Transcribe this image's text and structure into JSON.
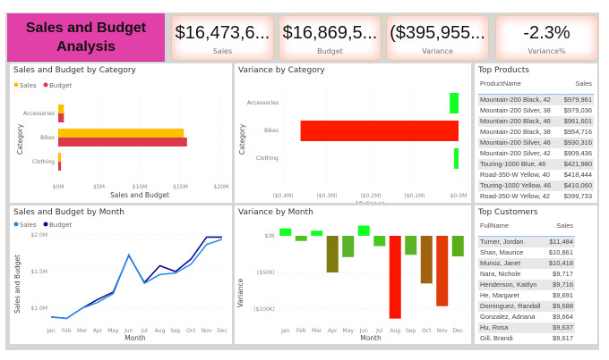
{
  "title": "Sales and Budget Analysis",
  "kpis": [
    {
      "value": "$16,473,6...",
      "label": "Sales"
    },
    {
      "value": "$16,869,5...",
      "label": "Budget"
    },
    {
      "value": "($395,955...",
      "label": "Variance"
    },
    {
      "value": "-2.3%",
      "label": "Variance%"
    }
  ],
  "colors": {
    "sales_bar": "#ffc000",
    "budget_bar": "#d9394a",
    "sales_line": "#2b8ce8",
    "budget_line": "#0a0a8c",
    "title_bg": "#e040a8"
  },
  "chart_data": [
    {
      "id": "cat",
      "type": "bar",
      "orientation": "horizontal",
      "title": "Sales and Budget by Category",
      "xlabel": "Sales and Budget",
      "ylabel": "Category",
      "categories": [
        "Accessories",
        "Bikes",
        "Clothing"
      ],
      "series": [
        {
          "name": "Sales",
          "values": [
            0.7,
            15.4,
            0.34
          ]
        },
        {
          "name": "Budget",
          "values": [
            0.7,
            15.8,
            0.34
          ]
        }
      ],
      "xlim": [
        0,
        20
      ],
      "ticks": [
        "$0M",
        "$5M",
        "$10M",
        "$15M",
        "$20M"
      ],
      "legend": "top-left"
    },
    {
      "id": "varcat",
      "type": "bar",
      "orientation": "horizontal",
      "title": "Variance by Category",
      "xlabel": "Variance",
      "ylabel": "Category",
      "categories": [
        "Accessories",
        "Bikes",
        "Clothing"
      ],
      "values": [
        -0.02,
        -0.36,
        -0.01
      ],
      "colors": [
        "#11ff22",
        "#ff1a00",
        "#11ff22"
      ],
      "xlim": [
        -0.4,
        0
      ],
      "ticks": [
        "($0.4M)",
        "($0.3M)",
        "($0.2M)",
        "($0.1M)",
        "$0.0M"
      ]
    },
    {
      "id": "month",
      "type": "line",
      "title": "Sales and Budget by Month",
      "xlabel": "Month",
      "ylabel": "Sales and Budget",
      "categories": [
        "Jan",
        "Feb",
        "Mar",
        "Apr",
        "May",
        "Jun",
        "Jul",
        "Aug",
        "Sep",
        "Oct",
        "Nov",
        "Dec"
      ],
      "series": [
        {
          "name": "Sales",
          "values": [
            0.88,
            0.86,
            1.0,
            1.08,
            1.2,
            1.73,
            1.34,
            1.46,
            1.48,
            1.6,
            1.87,
            1.94
          ]
        },
        {
          "name": "Budget",
          "values": [
            0.88,
            0.86,
            1.0,
            1.12,
            1.22,
            1.72,
            1.35,
            1.58,
            1.5,
            1.67,
            1.97,
            1.97
          ]
        }
      ],
      "ylim": [
        0.8,
        2.0
      ],
      "ticks": [
        {
          "v": 1.0,
          "t": "$1.0M"
        },
        {
          "v": 1.5,
          "t": "$1.5M"
        },
        {
          "v": 2.0,
          "t": "$2.0M"
        }
      ],
      "legend": "top-left"
    },
    {
      "id": "varmonth",
      "type": "bar",
      "title": "Variance by Month",
      "xlabel": "Month",
      "ylabel": "Variance",
      "categories": [
        "Jan",
        "Feb",
        "Mar",
        "Apr",
        "May",
        "Jun",
        "Jul",
        "Aug",
        "Sep",
        "Oct",
        "Nov",
        "Dec"
      ],
      "values": [
        10,
        -7,
        7,
        -50,
        -29,
        14,
        -14,
        -113,
        -26,
        -65,
        -96,
        -28
      ],
      "colors": [
        "#11ff22",
        "#4ec21a",
        "#11ff22",
        "#807a10",
        "#5ab428",
        "#11ff22",
        "#48c820",
        "#ff1400",
        "#5ab428",
        "#a06410",
        "#e03a08",
        "#5aae18"
      ],
      "ylim": [
        -115,
        18
      ],
      "ticks": [
        {
          "v": 0,
          "t": "$0K"
        },
        {
          "v": -50,
          "t": "($50K)"
        },
        {
          "v": -100,
          "t": "($100K)"
        }
      ]
    }
  ],
  "top_products": {
    "title": "Top Products",
    "headers": [
      "ProductName",
      "Sales"
    ],
    "rows": [
      [
        "Mountain-200 Black, 42",
        "$979,961"
      ],
      [
        "Mountain-200 Silver, 38",
        "$979,036"
      ],
      [
        "Mountain-200 Black, 46",
        "$961,601"
      ],
      [
        "Mountain-200 Black, 38",
        "$954,716"
      ],
      [
        "Mountain-200 Silver, 46",
        "$930,316"
      ],
      [
        "Mountain-200 Silver, 42",
        "$909,436"
      ],
      [
        "Touring-1000 Blue, 46",
        "$421,980"
      ],
      [
        "Road-350-W Yellow, 40",
        "$418,444"
      ],
      [
        "Touring-1000 Yellow, 46",
        "$410,060"
      ],
      [
        "Road-350-W Yellow, 42",
        "$399,733"
      ]
    ]
  },
  "top_customers": {
    "title": "Top Customers",
    "headers": [
      "FullName",
      "Sales"
    ],
    "rows": [
      [
        "Turner, Jordan",
        "$11,484"
      ],
      [
        "Shan, Maurice",
        "$10,861"
      ],
      [
        "Munoz, Janet",
        "$10,418"
      ],
      [
        "Nara, Nichole",
        "$9,717"
      ],
      [
        "Henderson, Kaitlyn",
        "$9,716"
      ],
      [
        "He, Margaret",
        "$9,691"
      ],
      [
        "Dominguez, Randall",
        "$9,688"
      ],
      [
        "Gonzalez, Adriana",
        "$9,664"
      ],
      [
        "Hu, Rosa",
        "$9,637"
      ],
      [
        "Gill, Brandi",
        "$9,617"
      ]
    ]
  }
}
